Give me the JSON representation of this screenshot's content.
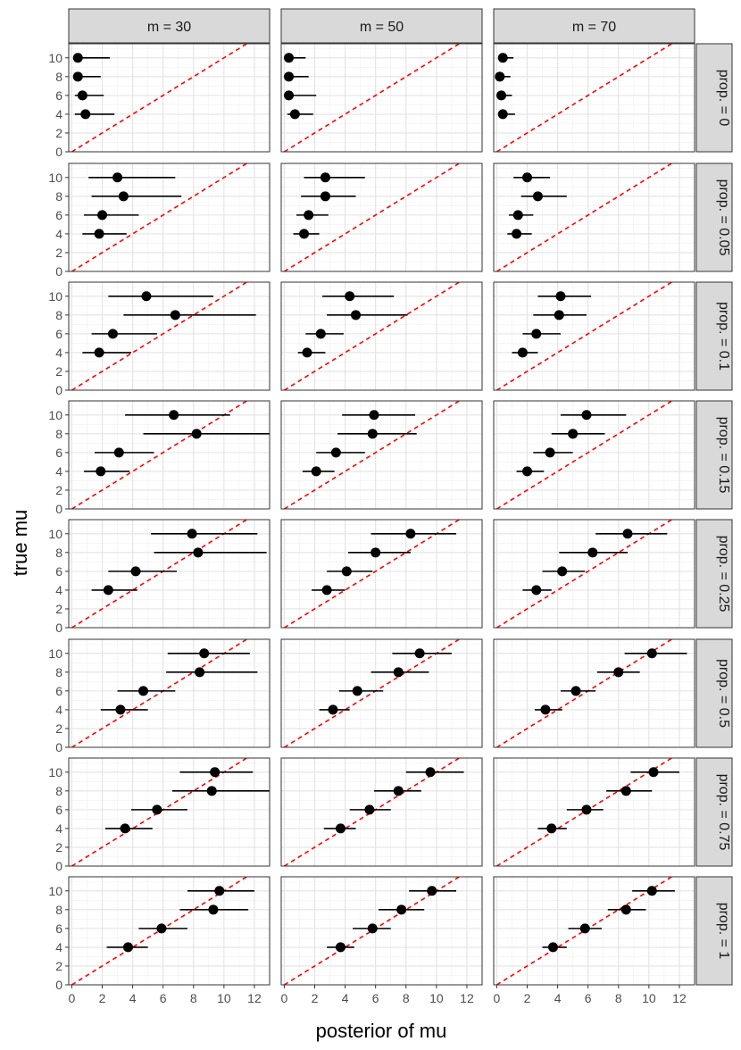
{
  "chart_data": {
    "type": "scatter",
    "subtype": "faceted point-range (interval) plot",
    "xlabel": "posterior of mu",
    "ylabel": "true mu",
    "xlim": [
      -0.2,
      13
    ],
    "ylim": [
      0,
      11.5
    ],
    "xticks": [
      0,
      2,
      4,
      6,
      8,
      10,
      12
    ],
    "yticks": [
      0,
      2,
      4,
      6,
      8,
      10
    ],
    "reference_line": {
      "slope": 1,
      "intercept": 0,
      "color": "#ff0000",
      "style": "dashed"
    },
    "column_facets": [
      "m = 30",
      "m = 50",
      "m = 70"
    ],
    "row_facets": [
      "prop. = 0",
      "prop. = 0.05",
      "prop. = 0.1",
      "prop. = 0.15",
      "prop. = 0.25",
      "prop. = 0.5",
      "prop. = 0.75",
      "prop. = 1"
    ],
    "panels": [
      [
        [
          {
            "y": 10,
            "x": 0.4,
            "lo": 0.1,
            "hi": 2.5
          },
          {
            "y": 8,
            "x": 0.4,
            "lo": 0.1,
            "hi": 1.9
          },
          {
            "y": 6,
            "x": 0.7,
            "lo": 0.2,
            "hi": 2.1
          },
          {
            "y": 4,
            "x": 0.9,
            "lo": 0.2,
            "hi": 2.8
          }
        ],
        [
          {
            "y": 10,
            "x": 3.0,
            "lo": 1.1,
            "hi": 6.8
          },
          {
            "y": 8,
            "x": 3.4,
            "lo": 1.3,
            "hi": 7.2
          },
          {
            "y": 6,
            "x": 2.0,
            "lo": 0.8,
            "hi": 4.4
          },
          {
            "y": 4,
            "x": 1.8,
            "lo": 0.7,
            "hi": 3.6
          }
        ],
        [
          {
            "y": 10,
            "x": 4.9,
            "lo": 2.4,
            "hi": 9.3
          },
          {
            "y": 8,
            "x": 6.8,
            "lo": 3.4,
            "hi": 12.1
          },
          {
            "y": 6,
            "x": 2.7,
            "lo": 1.3,
            "hi": 5.6
          },
          {
            "y": 4,
            "x": 1.8,
            "lo": 0.7,
            "hi": 3.9
          }
        ],
        [
          {
            "y": 10,
            "x": 6.7,
            "lo": 3.5,
            "hi": 10.4
          },
          {
            "y": 8,
            "x": 8.2,
            "lo": 4.7,
            "hi": 13.0
          },
          {
            "y": 6,
            "x": 3.1,
            "lo": 1.5,
            "hi": 5.4
          },
          {
            "y": 4,
            "x": 1.9,
            "lo": 0.8,
            "hi": 3.8
          }
        ],
        [
          {
            "y": 10,
            "x": 7.9,
            "lo": 5.2,
            "hi": 12.2
          },
          {
            "y": 8,
            "x": 8.3,
            "lo": 5.4,
            "hi": 12.8
          },
          {
            "y": 6,
            "x": 4.2,
            "lo": 2.4,
            "hi": 6.9
          },
          {
            "y": 4,
            "x": 2.4,
            "lo": 1.3,
            "hi": 4.3
          }
        ],
        [
          {
            "y": 10,
            "x": 8.7,
            "lo": 6.3,
            "hi": 11.7
          },
          {
            "y": 8,
            "x": 8.4,
            "lo": 6.2,
            "hi": 12.2
          },
          {
            "y": 6,
            "x": 4.7,
            "lo": 3.0,
            "hi": 6.8
          },
          {
            "y": 4,
            "x": 3.2,
            "lo": 1.9,
            "hi": 5.0
          }
        ],
        [
          {
            "y": 10,
            "x": 9.4,
            "lo": 7.1,
            "hi": 11.9
          },
          {
            "y": 8,
            "x": 9.2,
            "lo": 6.6,
            "hi": 13.0
          },
          {
            "y": 6,
            "x": 5.6,
            "lo": 3.9,
            "hi": 7.6
          },
          {
            "y": 4,
            "x": 3.5,
            "lo": 2.2,
            "hi": 5.3
          }
        ],
        [
          {
            "y": 10,
            "x": 9.7,
            "lo": 7.6,
            "hi": 12.0
          },
          {
            "y": 8,
            "x": 9.3,
            "lo": 7.1,
            "hi": 11.6
          },
          {
            "y": 6,
            "x": 5.9,
            "lo": 4.4,
            "hi": 7.6
          },
          {
            "y": 4,
            "x": 3.7,
            "lo": 2.3,
            "hi": 5.0
          }
        ]
      ],
      [
        [
          {
            "y": 10,
            "x": 0.3,
            "lo": 0.1,
            "hi": 1.4
          },
          {
            "y": 8,
            "x": 0.3,
            "lo": 0.1,
            "hi": 1.6
          },
          {
            "y": 6,
            "x": 0.3,
            "lo": 0.1,
            "hi": 2.1
          },
          {
            "y": 4,
            "x": 0.7,
            "lo": 0.2,
            "hi": 1.9
          }
        ],
        [
          {
            "y": 10,
            "x": 2.7,
            "lo": 1.3,
            "hi": 5.3
          },
          {
            "y": 8,
            "x": 2.7,
            "lo": 1.1,
            "hi": 4.7
          },
          {
            "y": 6,
            "x": 1.6,
            "lo": 0.8,
            "hi": 2.9
          },
          {
            "y": 4,
            "x": 1.3,
            "lo": 0.6,
            "hi": 2.3
          }
        ],
        [
          {
            "y": 10,
            "x": 4.3,
            "lo": 2.5,
            "hi": 7.2
          },
          {
            "y": 8,
            "x": 4.7,
            "lo": 2.8,
            "hi": 8.1
          },
          {
            "y": 6,
            "x": 2.4,
            "lo": 1.4,
            "hi": 3.9
          },
          {
            "y": 4,
            "x": 1.5,
            "lo": 0.9,
            "hi": 2.7
          }
        ],
        [
          {
            "y": 10,
            "x": 5.9,
            "lo": 3.8,
            "hi": 8.6
          },
          {
            "y": 8,
            "x": 5.8,
            "lo": 3.5,
            "hi": 8.7
          },
          {
            "y": 6,
            "x": 3.4,
            "lo": 2.1,
            "hi": 5.3
          },
          {
            "y": 4,
            "x": 2.1,
            "lo": 1.2,
            "hi": 3.3
          }
        ],
        [
          {
            "y": 10,
            "x": 8.3,
            "lo": 5.7,
            "hi": 11.3
          },
          {
            "y": 8,
            "x": 6.0,
            "lo": 4.2,
            "hi": 8.3
          },
          {
            "y": 6,
            "x": 4.1,
            "lo": 2.8,
            "hi": 5.8
          },
          {
            "y": 4,
            "x": 2.8,
            "lo": 1.8,
            "hi": 4.0
          }
        ],
        [
          {
            "y": 10,
            "x": 8.9,
            "lo": 7.1,
            "hi": 11.0
          },
          {
            "y": 8,
            "x": 7.5,
            "lo": 5.7,
            "hi": 9.5
          },
          {
            "y": 6,
            "x": 4.8,
            "lo": 3.6,
            "hi": 6.5
          },
          {
            "y": 4,
            "x": 3.2,
            "lo": 2.3,
            "hi": 4.3
          }
        ],
        [
          {
            "y": 10,
            "x": 9.6,
            "lo": 8.0,
            "hi": 11.8
          },
          {
            "y": 8,
            "x": 7.5,
            "lo": 5.9,
            "hi": 9.0
          },
          {
            "y": 6,
            "x": 5.6,
            "lo": 4.3,
            "hi": 7.0
          },
          {
            "y": 4,
            "x": 3.7,
            "lo": 2.6,
            "hi": 4.7
          }
        ],
        [
          {
            "y": 10,
            "x": 9.7,
            "lo": 8.2,
            "hi": 11.3
          },
          {
            "y": 8,
            "x": 7.7,
            "lo": 6.2,
            "hi": 9.2
          },
          {
            "y": 6,
            "x": 5.8,
            "lo": 4.5,
            "hi": 7.0
          },
          {
            "y": 4,
            "x": 3.7,
            "lo": 2.8,
            "hi": 4.6
          }
        ]
      ],
      [
        [
          {
            "y": 10,
            "x": 0.4,
            "lo": 0.1,
            "hi": 1.1
          },
          {
            "y": 8,
            "x": 0.2,
            "lo": 0.0,
            "hi": 0.9
          },
          {
            "y": 6,
            "x": 0.3,
            "lo": 0.1,
            "hi": 1.0
          },
          {
            "y": 4,
            "x": 0.4,
            "lo": 0.1,
            "hi": 1.2
          }
        ],
        [
          {
            "y": 10,
            "x": 2.0,
            "lo": 1.1,
            "hi": 3.5
          },
          {
            "y": 8,
            "x": 2.7,
            "lo": 1.6,
            "hi": 4.6
          },
          {
            "y": 6,
            "x": 1.4,
            "lo": 0.8,
            "hi": 2.4
          },
          {
            "y": 4,
            "x": 1.3,
            "lo": 0.7,
            "hi": 2.3
          }
        ],
        [
          {
            "y": 10,
            "x": 4.2,
            "lo": 2.7,
            "hi": 6.2
          },
          {
            "y": 8,
            "x": 4.1,
            "lo": 2.4,
            "hi": 5.9
          },
          {
            "y": 6,
            "x": 2.6,
            "lo": 1.7,
            "hi": 4.2
          },
          {
            "y": 4,
            "x": 1.7,
            "lo": 1.0,
            "hi": 2.7
          }
        ],
        [
          {
            "y": 10,
            "x": 5.9,
            "lo": 4.2,
            "hi": 8.5
          },
          {
            "y": 8,
            "x": 5.0,
            "lo": 3.6,
            "hi": 7.1
          },
          {
            "y": 6,
            "x": 3.5,
            "lo": 2.4,
            "hi": 5.0
          },
          {
            "y": 4,
            "x": 2.0,
            "lo": 1.3,
            "hi": 3.1
          }
        ],
        [
          {
            "y": 10,
            "x": 8.6,
            "lo": 6.5,
            "hi": 11.2
          },
          {
            "y": 8,
            "x": 6.3,
            "lo": 4.1,
            "hi": 8.6
          },
          {
            "y": 6,
            "x": 4.3,
            "lo": 3.0,
            "hi": 5.8
          },
          {
            "y": 4,
            "x": 2.6,
            "lo": 1.7,
            "hi": 3.6
          }
        ],
        [
          {
            "y": 10,
            "x": 10.2,
            "lo": 8.4,
            "hi": 12.5
          },
          {
            "y": 8,
            "x": 8.0,
            "lo": 6.6,
            "hi": 9.4
          },
          {
            "y": 6,
            "x": 5.2,
            "lo": 4.2,
            "hi": 6.5
          },
          {
            "y": 4,
            "x": 3.2,
            "lo": 2.5,
            "hi": 4.3
          }
        ],
        [
          {
            "y": 10,
            "x": 10.3,
            "lo": 8.8,
            "hi": 12.0
          },
          {
            "y": 8,
            "x": 8.5,
            "lo": 7.2,
            "hi": 10.2
          },
          {
            "y": 6,
            "x": 5.9,
            "lo": 4.6,
            "hi": 7.0
          },
          {
            "y": 4,
            "x": 3.6,
            "lo": 2.7,
            "hi": 4.6
          }
        ],
        [
          {
            "y": 10,
            "x": 10.2,
            "lo": 8.9,
            "hi": 11.7
          },
          {
            "y": 8,
            "x": 8.5,
            "lo": 7.3,
            "hi": 9.8
          },
          {
            "y": 6,
            "x": 5.8,
            "lo": 4.7,
            "hi": 6.9
          },
          {
            "y": 4,
            "x": 3.7,
            "lo": 3.0,
            "hi": 4.6
          }
        ]
      ]
    ]
  }
}
